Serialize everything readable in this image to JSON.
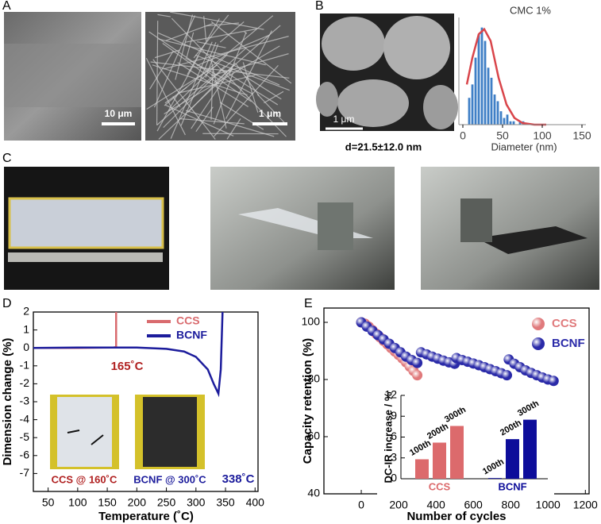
{
  "panels": [
    "A",
    "B",
    "C",
    "D",
    "E"
  ],
  "panel_a": {
    "scale_bars": [
      "10 μm",
      "1 μm"
    ]
  },
  "panel_b": {
    "scale_bar": "1 μm",
    "caption": "d=21.5±12.0 nm"
  },
  "chart_data": [
    {
      "type": "histogram",
      "title": "CMC 1%",
      "x_label": "Diameter (nm)",
      "color": "#3f7fc6",
      "bins": [
        6,
        10,
        14,
        18,
        22,
        26,
        30,
        34,
        38,
        42,
        46,
        50,
        54,
        58,
        62,
        66,
        70,
        74,
        78
      ],
      "counts": [
        8,
        12,
        20,
        27,
        29,
        25,
        17,
        14,
        9,
        7,
        4,
        2,
        3,
        1,
        1,
        0,
        1,
        1
      ],
      "fit": {
        "color": "#d9454a",
        "x": [
          5,
          12,
          20,
          27,
          35,
          45,
          55,
          65,
          75,
          90,
          105
        ],
        "values": [
          12,
          20,
          27,
          28.5,
          25,
          14,
          6,
          2,
          0.5,
          0,
          0
        ]
      },
      "xlim": [
        -5,
        155
      ],
      "ylim": [
        0,
        32
      ],
      "xticks": [
        0,
        50,
        100,
        150
      ]
    },
    {
      "type": "line",
      "x_label": "Temperature (˚C)",
      "y_label": "Dimension change (%)",
      "series": [
        {
          "name": "CCS",
          "color": "#d96b6e",
          "x": [
            25,
            100,
            160,
            165,
            165
          ],
          "values": [
            0,
            0,
            0.02,
            0.05,
            2
          ]
        },
        {
          "name": "BCNF",
          "color": "#1c1c9c",
          "x": [
            25,
            100,
            200,
            250,
            280,
            300,
            320,
            330,
            338,
            342,
            345
          ],
          "values": [
            0,
            0.02,
            0.02,
            -0.05,
            -0.2,
            -0.5,
            -1.2,
            -2,
            -2.55,
            -1.2,
            2
          ]
        }
      ],
      "annotations": [
        "165˚C",
        "338˚C"
      ],
      "inset_captions": [
        "CCS @ 160˚C",
        "BCNF @ 300˚C"
      ],
      "xlim": [
        25,
        405
      ],
      "ylim": [
        -8,
        2
      ],
      "xticks": [
        50,
        100,
        150,
        200,
        250,
        300,
        350,
        400
      ],
      "yticks": [
        2,
        1,
        0,
        -1,
        -2,
        -3,
        -4,
        -5,
        -6,
        -7
      ]
    },
    {
      "type": "scatter",
      "x_label": "Number of cycles",
      "y_label": "Capacity retention (%)",
      "series": [
        {
          "name": "CCS",
          "color": "#e07a7c",
          "x": [
            0,
            20,
            40,
            60,
            80,
            100,
            120,
            140,
            160,
            180,
            200,
            220,
            240,
            260,
            280,
            300
          ],
          "values": [
            100,
            99.5,
            98.5,
            97.3,
            96,
            94.8,
            93.5,
            92.3,
            91,
            89.8,
            88.6,
            87.4,
            86,
            84.5,
            83,
            81.5
          ]
        },
        {
          "name": "BCNF",
          "color": "#2a2aa8",
          "x": [
            0,
            30,
            60,
            90,
            120,
            150,
            180,
            210,
            240,
            270,
            300,
            320,
            350,
            380,
            410,
            440,
            470,
            500,
            510,
            540,
            570,
            600,
            630,
            660,
            690,
            720,
            750,
            780,
            790,
            820,
            850,
            880,
            910,
            940,
            970,
            1000,
            1030
          ],
          "values": [
            100,
            98.5,
            97,
            95.5,
            94,
            92.5,
            91,
            89.5,
            88,
            86.8,
            85.8,
            89.5,
            88.8,
            88,
            87.3,
            86.6,
            86,
            85.5,
            87.5,
            86.8,
            86.2,
            85.6,
            85,
            84.3,
            83.6,
            82.9,
            82.2,
            81.5,
            87,
            85.5,
            84.3,
            83.2,
            82.3,
            81.5,
            80.7,
            80,
            79.5
          ]
        }
      ],
      "xlim": [
        -200,
        1220
      ],
      "ylim": [
        40,
        105
      ],
      "xticks": [
        0,
        200,
        400,
        600,
        800,
        1000,
        1200
      ],
      "yticks": [
        40,
        60,
        80,
        100
      ]
    },
    {
      "type": "bar",
      "y_label": "DC-IR increase / %",
      "categories": [
        "100th",
        "200th",
        "300th"
      ],
      "series": [
        {
          "name": "CCS",
          "color": "#dc6a6c",
          "values": [
            2.8,
            5.2,
            7.6
          ]
        },
        {
          "name": "BCNF",
          "color": "#0d0d9a",
          "values": [
            0.1,
            5.7,
            8.5
          ]
        }
      ],
      "ylim": [
        0,
        12
      ],
      "yticks": [
        0,
        3,
        6,
        9,
        12
      ]
    }
  ]
}
